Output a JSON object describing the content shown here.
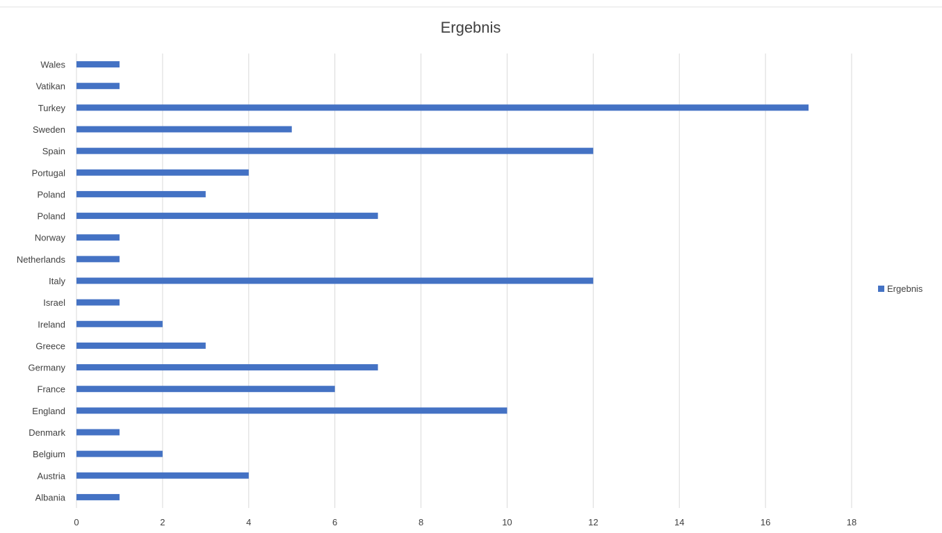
{
  "chart_data": {
    "type": "bar",
    "orientation": "horizontal",
    "title": "Ergebnis",
    "categories": [
      "Wales",
      "Vatikan",
      "Turkey",
      "Sweden",
      "Spain",
      "Portugal",
      "Poland",
      "Poland",
      "Norway",
      "Netherlands",
      "Italy",
      "Israel",
      "Ireland",
      "Greece",
      "Germany",
      "France",
      "England",
      "Denmark",
      "Belgium",
      "Austria",
      "Albania"
    ],
    "series": [
      {
        "name": "Ergebnis",
        "values": [
          1,
          1,
          17,
          5,
          12,
          4,
          3,
          7,
          1,
          1,
          12,
          1,
          2,
          3,
          7,
          6,
          10,
          1,
          2,
          4,
          1
        ]
      }
    ],
    "xlim": [
      0,
      18
    ],
    "xticks": [
      "0",
      "2",
      "4",
      "6",
      "8",
      "10",
      "12",
      "14",
      "16",
      "18"
    ],
    "grid": true,
    "legend": "right",
    "bar_color": "#4472C4",
    "grid_color": "#d9d9d9"
  }
}
